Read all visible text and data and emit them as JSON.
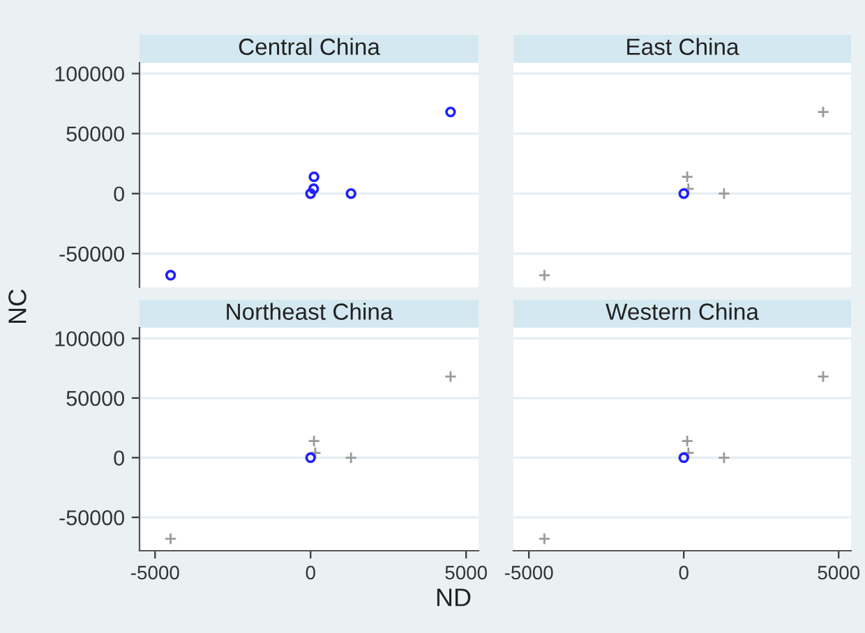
{
  "chart_data": [
    {
      "type": "scatter",
      "title": "Central China",
      "ylabel": "NC",
      "xlim": [
        -5500,
        5400
      ],
      "ylim": [
        -78000,
        109000
      ],
      "xticks": [
        -5000,
        0,
        5000
      ],
      "yticks": [
        -50000,
        0,
        50000,
        100000
      ],
      "grid": "y",
      "tick_labels": "y",
      "series": [
        {
          "color": "#1f1fff",
          "marker": "circle",
          "x": [
            -4500,
            4500,
            110,
            1300,
            0,
            100
          ],
          "values": [
            -68000,
            68000,
            14000,
            0,
            0,
            4000
          ]
        }
      ]
    },
    {
      "type": "scatter",
      "title": "East China",
      "xlim": [
        -5500,
        5400
      ],
      "ylim": [
        -78000,
        109000
      ],
      "xticks": [
        -5000,
        0,
        5000
      ],
      "yticks": [
        -50000,
        0,
        50000,
        100000
      ],
      "grid": "y",
      "tick_labels": false,
      "series": [
        {
          "color": "#999999",
          "marker": "cross",
          "x": [
            -4500,
            4500,
            110,
            1300,
            150
          ],
          "values": [
            -68000,
            68000,
            14000,
            0,
            4000
          ]
        },
        {
          "color": "#1f1fff",
          "marker": "circle",
          "x": [
            0
          ],
          "values": [
            0
          ]
        }
      ]
    },
    {
      "type": "scatter",
      "title": "Northeast China",
      "xlabel": "ND",
      "xlim": [
        -5500,
        5400
      ],
      "ylim": [
        -78000,
        109000
      ],
      "xticks": [
        -5000,
        0,
        5000
      ],
      "yticks": [
        -50000,
        0,
        50000,
        100000
      ],
      "grid": "y",
      "series": [
        {
          "color": "#999999",
          "marker": "cross",
          "x": [
            -4500,
            4500,
            110,
            1300,
            150
          ],
          "values": [
            -68000,
            68000,
            14000,
            0,
            4000
          ]
        },
        {
          "color": "#1f1fff",
          "marker": "circle",
          "x": [
            0
          ],
          "values": [
            0
          ]
        }
      ]
    },
    {
      "type": "scatter",
      "title": "Western China",
      "xlim": [
        -5500,
        5400
      ],
      "ylim": [
        -78000,
        109000
      ],
      "xticks": [
        -5000,
        0,
        5000
      ],
      "yticks": [
        -50000,
        0,
        50000,
        100000
      ],
      "grid": "y",
      "tick_labels": "x",
      "series": [
        {
          "color": "#999999",
          "marker": "cross",
          "x": [
            -4500,
            4500,
            110,
            1300,
            150
          ],
          "values": [
            -68000,
            68000,
            14000,
            0,
            4000
          ]
        },
        {
          "color": "#1f1fff",
          "marker": "circle",
          "x": [
            0
          ],
          "values": [
            0
          ]
        }
      ]
    }
  ]
}
